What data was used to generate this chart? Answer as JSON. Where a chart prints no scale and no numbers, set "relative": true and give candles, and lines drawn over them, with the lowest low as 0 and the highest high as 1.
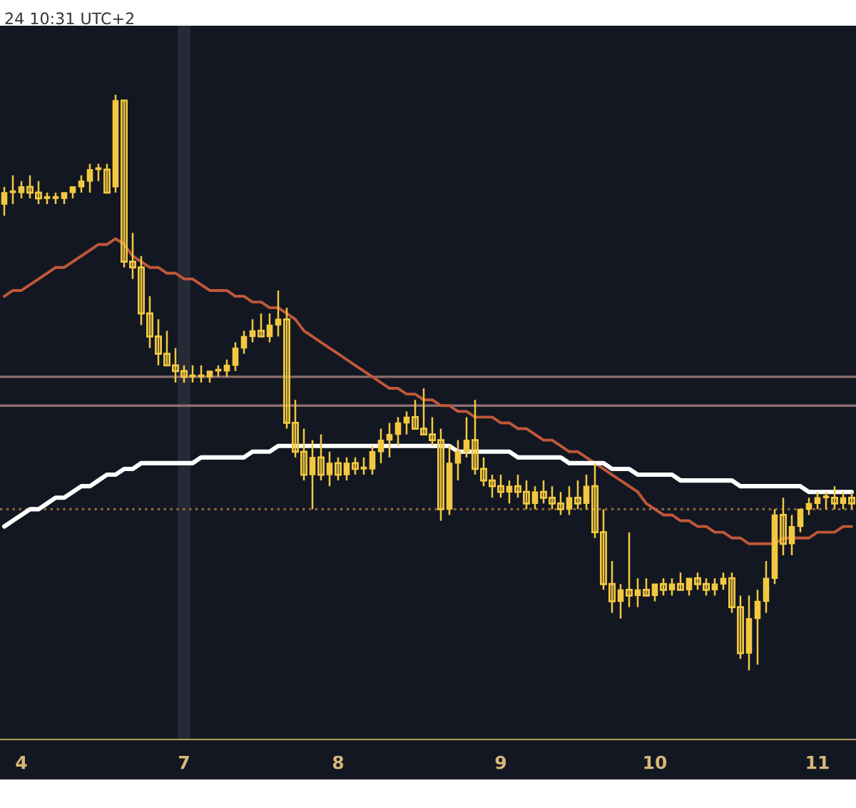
{
  "chart_data": {
    "type": "candlestick",
    "relative": true,
    "title": "24 10:31 UTC+2",
    "categories": [
      null,
      null,
      "4",
      null,
      null,
      null,
      null,
      null,
      null,
      null,
      null,
      null,
      null,
      null,
      null,
      null,
      null,
      null,
      null,
      null,
      null,
      "7",
      null,
      null,
      null,
      null,
      null,
      null,
      null,
      null,
      null,
      null,
      null,
      null,
      null,
      null,
      null,
      null,
      null,
      "8",
      null,
      null,
      null,
      null,
      null,
      null,
      null,
      null,
      null,
      null,
      null,
      null,
      null,
      null,
      null,
      null,
      null,
      null,
      "9",
      null,
      null,
      null,
      null,
      null,
      null,
      null,
      null,
      null,
      null,
      null,
      null,
      null,
      null,
      null,
      null,
      null,
      "10",
      null,
      null,
      null,
      null,
      null,
      null,
      null,
      null,
      null,
      null,
      null,
      null,
      null,
      null,
      null,
      null,
      null,
      null,
      "11",
      null,
      null,
      null,
      null
    ],
    "ohlc": [
      [
        0.81,
        0.84,
        0.79,
        0.83
      ],
      [
        0.83,
        0.86,
        0.81,
        0.83
      ],
      [
        0.83,
        0.85,
        0.82,
        0.84
      ],
      [
        0.84,
        0.86,
        0.82,
        0.83
      ],
      [
        0.83,
        0.85,
        0.81,
        0.82
      ],
      [
        0.82,
        0.83,
        0.81,
        0.82
      ],
      [
        0.82,
        0.83,
        0.81,
        0.82
      ],
      [
        0.82,
        0.83,
        0.81,
        0.83
      ],
      [
        0.83,
        0.84,
        0.82,
        0.84
      ],
      [
        0.84,
        0.86,
        0.83,
        0.85
      ],
      [
        0.85,
        0.88,
        0.83,
        0.87
      ],
      [
        0.87,
        0.88,
        0.85,
        0.87
      ],
      [
        0.87,
        0.88,
        0.83,
        0.83
      ],
      [
        0.84,
        1.0,
        0.83,
        0.99
      ],
      [
        0.99,
        0.99,
        0.7,
        0.71
      ],
      [
        0.71,
        0.76,
        0.68,
        0.7
      ],
      [
        0.7,
        0.72,
        0.6,
        0.62
      ],
      [
        0.62,
        0.65,
        0.56,
        0.58
      ],
      [
        0.58,
        0.61,
        0.53,
        0.55
      ],
      [
        0.55,
        0.59,
        0.53,
        0.53
      ],
      [
        0.53,
        0.56,
        0.5,
        0.52
      ],
      [
        0.52,
        0.53,
        0.5,
        0.51
      ],
      [
        0.51,
        0.53,
        0.5,
        0.51
      ],
      [
        0.51,
        0.53,
        0.5,
        0.51
      ],
      [
        0.51,
        0.52,
        0.5,
        0.52
      ],
      [
        0.52,
        0.53,
        0.51,
        0.52
      ],
      [
        0.52,
        0.54,
        0.51,
        0.53
      ],
      [
        0.53,
        0.57,
        0.52,
        0.56
      ],
      [
        0.56,
        0.59,
        0.55,
        0.58
      ],
      [
        0.58,
        0.61,
        0.57,
        0.59
      ],
      [
        0.59,
        0.62,
        0.58,
        0.58
      ],
      [
        0.58,
        0.62,
        0.57,
        0.6
      ],
      [
        0.6,
        0.66,
        0.58,
        0.61
      ],
      [
        0.61,
        0.63,
        0.42,
        0.43
      ],
      [
        0.43,
        0.47,
        0.37,
        0.38
      ],
      [
        0.38,
        0.42,
        0.33,
        0.34
      ],
      [
        0.34,
        0.4,
        0.28,
        0.37
      ],
      [
        0.37,
        0.41,
        0.33,
        0.34
      ],
      [
        0.34,
        0.38,
        0.32,
        0.36
      ],
      [
        0.36,
        0.37,
        0.33,
        0.34
      ],
      [
        0.34,
        0.37,
        0.33,
        0.36
      ],
      [
        0.36,
        0.37,
        0.34,
        0.35
      ],
      [
        0.35,
        0.37,
        0.34,
        0.35
      ],
      [
        0.35,
        0.39,
        0.34,
        0.38
      ],
      [
        0.38,
        0.42,
        0.36,
        0.4
      ],
      [
        0.4,
        0.43,
        0.37,
        0.41
      ],
      [
        0.41,
        0.44,
        0.39,
        0.43
      ],
      [
        0.43,
        0.45,
        0.41,
        0.44
      ],
      [
        0.44,
        0.47,
        0.42,
        0.42
      ],
      [
        0.42,
        0.49,
        0.41,
        0.41
      ],
      [
        0.41,
        0.44,
        0.39,
        0.4
      ],
      [
        0.4,
        0.42,
        0.26,
        0.28
      ],
      [
        0.28,
        0.39,
        0.27,
        0.36
      ],
      [
        0.36,
        0.4,
        0.33,
        0.38
      ],
      [
        0.38,
        0.44,
        0.37,
        0.4
      ],
      [
        0.4,
        0.47,
        0.34,
        0.35
      ],
      [
        0.35,
        0.37,
        0.32,
        0.33
      ],
      [
        0.33,
        0.34,
        0.3,
        0.32
      ],
      [
        0.32,
        0.34,
        0.3,
        0.31
      ],
      [
        0.31,
        0.33,
        0.29,
        0.32
      ],
      [
        0.32,
        0.34,
        0.3,
        0.31
      ],
      [
        0.31,
        0.33,
        0.28,
        0.29
      ],
      [
        0.29,
        0.32,
        0.28,
        0.31
      ],
      [
        0.31,
        0.33,
        0.29,
        0.3
      ],
      [
        0.3,
        0.32,
        0.28,
        0.29
      ],
      [
        0.29,
        0.31,
        0.27,
        0.28
      ],
      [
        0.28,
        0.32,
        0.27,
        0.3
      ],
      [
        0.3,
        0.33,
        0.28,
        0.29
      ],
      [
        0.29,
        0.34,
        0.28,
        0.32
      ],
      [
        0.32,
        0.36,
        0.23,
        0.24
      ],
      [
        0.24,
        0.28,
        0.14,
        0.15
      ],
      [
        0.15,
        0.19,
        0.1,
        0.12
      ],
      [
        0.12,
        0.15,
        0.09,
        0.14
      ],
      [
        0.14,
        0.24,
        0.11,
        0.13
      ],
      [
        0.13,
        0.16,
        0.11,
        0.14
      ],
      [
        0.14,
        0.16,
        0.13,
        0.13
      ],
      [
        0.13,
        0.15,
        0.12,
        0.15
      ],
      [
        0.15,
        0.16,
        0.13,
        0.14
      ],
      [
        0.14,
        0.16,
        0.13,
        0.15
      ],
      [
        0.15,
        0.17,
        0.14,
        0.14
      ],
      [
        0.14,
        0.16,
        0.13,
        0.16
      ],
      [
        0.16,
        0.17,
        0.14,
        0.15
      ],
      [
        0.15,
        0.16,
        0.13,
        0.14
      ],
      [
        0.14,
        0.16,
        0.13,
        0.15
      ],
      [
        0.15,
        0.17,
        0.14,
        0.16
      ],
      [
        0.16,
        0.17,
        0.1,
        0.11
      ],
      [
        0.11,
        0.13,
        0.02,
        0.03
      ],
      [
        0.03,
        0.13,
        0.0,
        0.09
      ],
      [
        0.09,
        0.14,
        0.01,
        0.12
      ],
      [
        0.12,
        0.19,
        0.1,
        0.16
      ],
      [
        0.16,
        0.28,
        0.15,
        0.27
      ],
      [
        0.27,
        0.3,
        0.2,
        0.22
      ],
      [
        0.22,
        0.27,
        0.2,
        0.25
      ],
      [
        0.25,
        0.28,
        0.24,
        0.28
      ],
      [
        0.28,
        0.3,
        0.27,
        0.29
      ],
      [
        0.29,
        0.31,
        0.28,
        0.3
      ],
      [
        0.3,
        0.31,
        0.28,
        0.3
      ],
      [
        0.3,
        0.32,
        0.28,
        0.29
      ],
      [
        0.29,
        0.31,
        0.28,
        0.3
      ],
      [
        0.3,
        0.31,
        0.28,
        0.29
      ]
    ],
    "color": "#f2c840",
    "series": [
      {
        "type": "line",
        "color": "#c0583a",
        "values": [
          0.65,
          0.66,
          0.66,
          0.67,
          0.68,
          0.69,
          0.7,
          0.7,
          0.71,
          0.72,
          0.73,
          0.74,
          0.74,
          0.75,
          0.74,
          0.72,
          0.71,
          0.7,
          0.7,
          0.69,
          0.69,
          0.68,
          0.68,
          0.67,
          0.66,
          0.66,
          0.66,
          0.65,
          0.65,
          0.64,
          0.64,
          0.63,
          0.63,
          0.62,
          0.61,
          0.59,
          0.58,
          0.57,
          0.56,
          0.55,
          0.54,
          0.53,
          0.52,
          0.51,
          0.5,
          0.49,
          0.49,
          0.48,
          0.48,
          0.47,
          0.47,
          0.46,
          0.46,
          0.45,
          0.45,
          0.44,
          0.44,
          0.44,
          0.43,
          0.43,
          0.42,
          0.42,
          0.41,
          0.4,
          0.4,
          0.39,
          0.38,
          0.38,
          0.37,
          0.36,
          0.35,
          0.34,
          0.33,
          0.32,
          0.31,
          0.29,
          0.28,
          0.27,
          0.27,
          0.26,
          0.26,
          0.25,
          0.25,
          0.24,
          0.24,
          0.23,
          0.23,
          0.22,
          0.22,
          0.22,
          0.22,
          0.23,
          0.23,
          0.23,
          0.23,
          0.24,
          0.24,
          0.24,
          0.25,
          0.25
        ]
      },
      {
        "type": "line",
        "color": "#ffffff",
        "values": [
          0.25,
          0.26,
          0.27,
          0.28,
          0.28,
          0.29,
          0.3,
          0.3,
          0.31,
          0.32,
          0.32,
          0.33,
          0.34,
          0.34,
          0.35,
          0.35,
          0.36,
          0.36,
          0.36,
          0.36,
          0.36,
          0.36,
          0.36,
          0.37,
          0.37,
          0.37,
          0.37,
          0.37,
          0.37,
          0.38,
          0.38,
          0.38,
          0.39,
          0.39,
          0.39,
          0.39,
          0.39,
          0.39,
          0.39,
          0.39,
          0.39,
          0.39,
          0.39,
          0.39,
          0.39,
          0.39,
          0.39,
          0.39,
          0.39,
          0.39,
          0.39,
          0.39,
          0.39,
          0.38,
          0.38,
          0.38,
          0.38,
          0.38,
          0.38,
          0.38,
          0.37,
          0.37,
          0.37,
          0.37,
          0.37,
          0.37,
          0.36,
          0.36,
          0.36,
          0.36,
          0.36,
          0.35,
          0.35,
          0.35,
          0.34,
          0.34,
          0.34,
          0.34,
          0.34,
          0.33,
          0.33,
          0.33,
          0.33,
          0.33,
          0.33,
          0.33,
          0.32,
          0.32,
          0.32,
          0.32,
          0.32,
          0.32,
          0.32,
          0.32,
          0.31,
          0.31,
          0.31,
          0.31,
          0.31,
          0.31
        ]
      }
    ],
    "ref_lines": [
      {
        "axis": "y",
        "value": 0.51,
        "label": null,
        "color": "#8c6e6e"
      },
      {
        "axis": "y",
        "value": 0.46,
        "label": null,
        "color": "#8c6e6e"
      },
      {
        "axis": "y",
        "value": 0.28,
        "label": null,
        "color": "#8a6a3a",
        "line_style": "dotted"
      }
    ],
    "bands": [
      {
        "axis": "x",
        "from": "7",
        "to": "7",
        "label": null,
        "color": "#262a36"
      }
    ]
  }
}
